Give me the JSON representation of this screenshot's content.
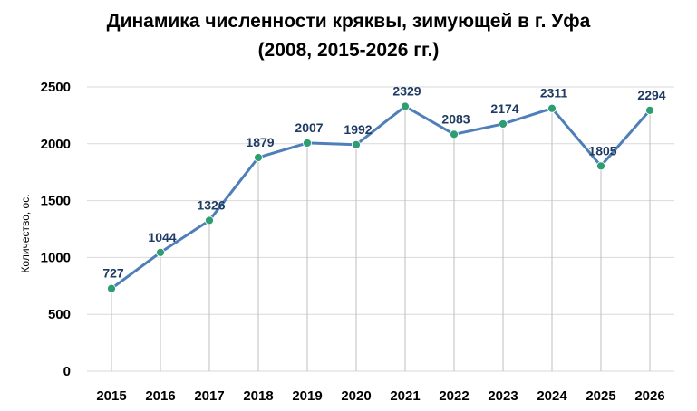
{
  "colors": {
    "line": "#4f7fb8",
    "marker": "#2e9e72",
    "data_label": "#1f3b64",
    "grid": "#d9d9d9",
    "drop_line": "#bfbfbf"
  },
  "chart_data": {
    "type": "line",
    "title": "Динамика численности кряквы, зимующей в г. Уфа",
    "subtitle": "(2008, 2015-2026 гг.)",
    "xlabel": "",
    "ylabel": "Количество, ос.",
    "categories": [
      "2015",
      "2016",
      "2017",
      "2018",
      "2019",
      "2020",
      "2021",
      "2022",
      "2023",
      "2024",
      "2025",
      "2026"
    ],
    "values": [
      727,
      1044,
      1326,
      1879,
      2007,
      1992,
      2329,
      2083,
      2174,
      2311,
      1805,
      2294
    ],
    "ylim": [
      0,
      2500
    ],
    "yticks": [
      "0",
      "500",
      "1000",
      "1500",
      "2000",
      "2500"
    ],
    "grid": true,
    "drop_lines": true,
    "data_labels": true,
    "legend": "none"
  }
}
